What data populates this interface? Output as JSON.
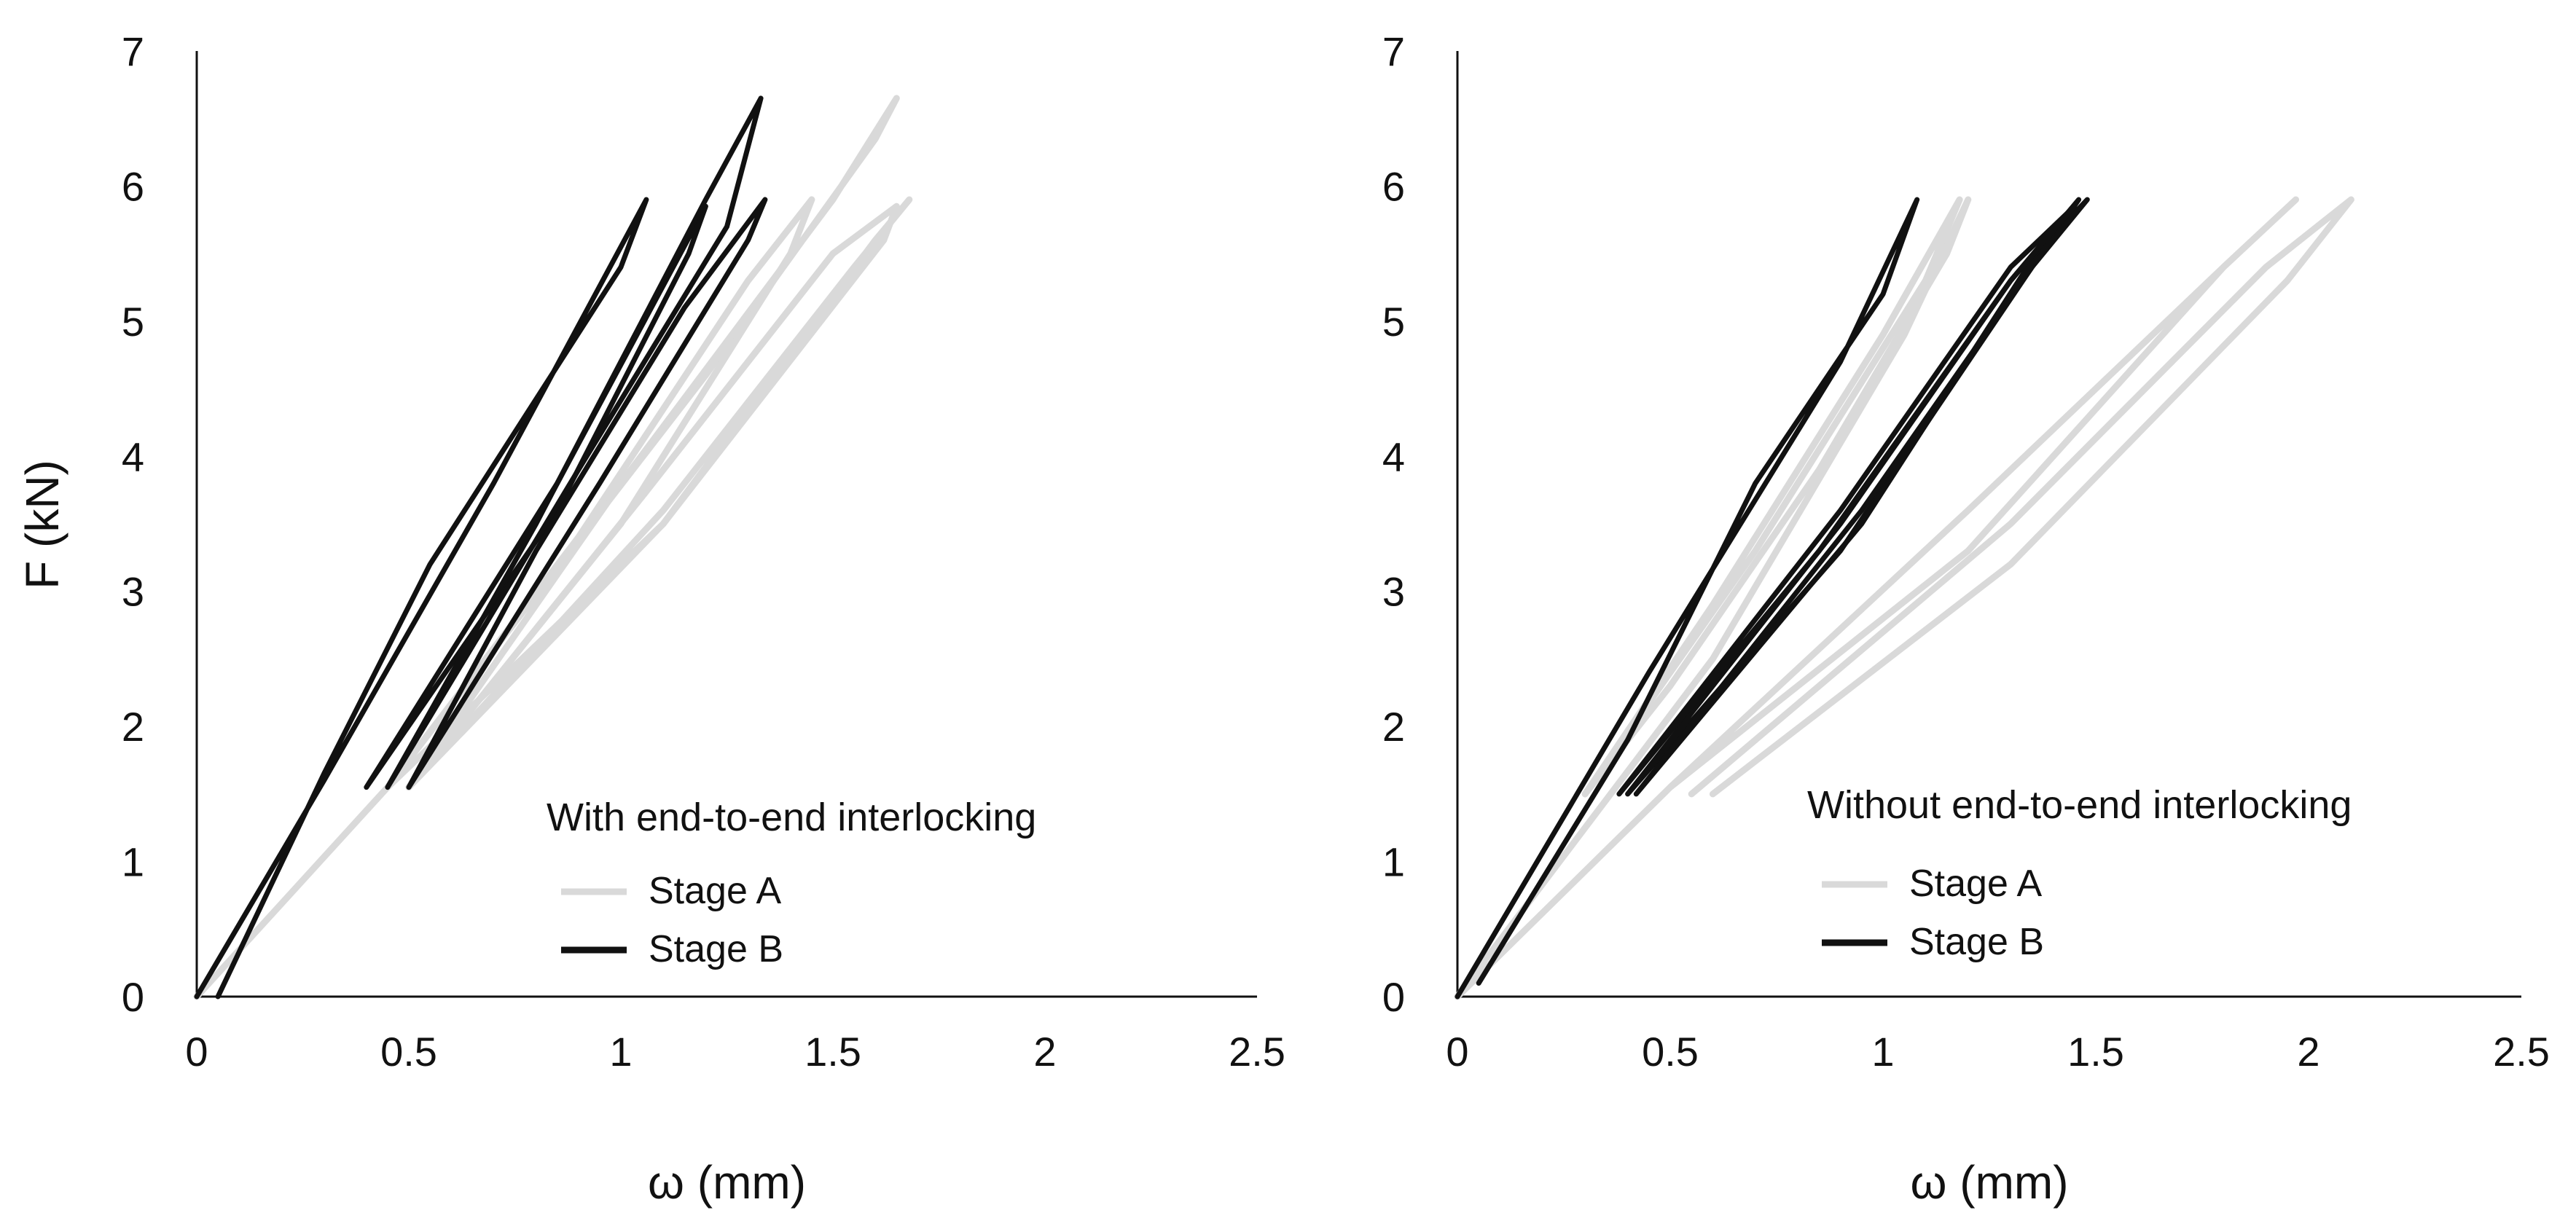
{
  "chart_data": [
    {
      "type": "line",
      "title": "",
      "xlabel": "ω (mm)",
      "ylabel": "F (kN)",
      "xlim": [
        0,
        2.5
      ],
      "ylim": [
        0,
        7
      ],
      "x_ticks": [
        "0",
        "0.5",
        "1",
        "1.5",
        "2",
        "2.5"
      ],
      "y_ticks": [
        "0",
        "1",
        "2",
        "3",
        "4",
        "5",
        "6",
        "7"
      ],
      "grid": false,
      "legend_title": "With end-to-end interlocking",
      "legend_position": "bottom-right",
      "series": [
        {
          "name": "Stage A",
          "color": "#d9d9d9",
          "cycles": [
            {
              "x": [
                0,
                0.45,
                1.2,
                1.6,
                1.65,
                1.5,
                1.0,
                0.5
              ],
              "y": [
                0,
                1.55,
                4.6,
                6.35,
                6.65,
                5.9,
                3.8,
                1.55
              ]
            },
            {
              "x": [
                0.5,
                1.0,
                1.4,
                1.45,
                1.3,
                0.9,
                0.45
              ],
              "y": [
                1.55,
                3.5,
                5.5,
                5.9,
                5.3,
                3.4,
                1.55
              ]
            },
            {
              "x": [
                0.45,
                1.1,
                1.6,
                1.68,
                1.55,
                1.1,
                0.5
              ],
              "y": [
                1.55,
                3.5,
                5.6,
                5.9,
                5.4,
                3.6,
                1.55
              ]
            },
            {
              "x": [
                0.5,
                1.1,
                1.62,
                1.65,
                1.5,
                1.05,
                0.5
              ],
              "y": [
                1.55,
                3.5,
                5.6,
                5.85,
                5.5,
                3.7,
                1.55
              ]
            }
          ]
        },
        {
          "name": "Stage B",
          "color": "#111111",
          "cycles": [
            {
              "x": [
                0,
                0.3,
                0.7,
                1.06,
                1.0,
                0.55,
                0.3,
                0.05
              ],
              "y": [
                0,
                1.6,
                3.8,
                5.9,
                5.4,
                3.2,
                1.65,
                0
              ]
            },
            {
              "x": [
                0.4,
                0.85,
                1.2,
                1.16,
                0.85,
                0.4
              ],
              "y": [
                1.55,
                3.8,
                5.85,
                5.5,
                3.6,
                1.55
              ]
            },
            {
              "x": [
                0.45,
                0.9,
                1.25,
                1.33,
                1.2,
                0.8,
                0.45
              ],
              "y": [
                1.55,
                3.9,
                5.7,
                6.65,
                5.9,
                3.5,
                1.55
              ]
            },
            {
              "x": [
                0.5,
                0.95,
                1.3,
                1.34,
                1.15,
                0.8,
                0.5
              ],
              "y": [
                1.55,
                3.8,
                5.6,
                5.9,
                5.1,
                3.3,
                1.55
              ]
            }
          ]
        }
      ]
    },
    {
      "type": "line",
      "title": "",
      "xlabel": "ω (mm)",
      "ylabel": "",
      "xlim": [
        0,
        2.5
      ],
      "ylim": [
        0,
        7
      ],
      "x_ticks": [
        "0",
        "0.5",
        "1",
        "1.5",
        "2",
        "2.5"
      ],
      "y_ticks": [
        "0",
        "1",
        "2",
        "3",
        "4",
        "5",
        "6",
        "7"
      ],
      "grid": false,
      "legend_title": "Without end-to-end interlocking",
      "legend_position": "bottom-right",
      "series": [
        {
          "name": "Stage A",
          "color": "#d9d9d9",
          "cycles": [
            {
              "x": [
                0,
                0.6,
                1.05,
                1.2,
                1.15,
                0.85,
                0.5,
                0.3
              ],
              "y": [
                0,
                2.5,
                4.9,
                5.9,
                5.5,
                3.9,
                2.3,
                1.5
              ]
            },
            {
              "x": [
                0.3,
                0.7,
                1.1,
                1.18,
                1.0,
                0.6,
                0.3
              ],
              "y": [
                1.5,
                3.3,
                5.3,
                5.9,
                4.9,
                2.9,
                1.5
              ]
            },
            {
              "x": [
                0,
                0.5,
                1.2,
                1.8,
                1.97,
                1.8,
                1.2,
                0.5
              ],
              "y": [
                0,
                1.55,
                3.6,
                5.4,
                5.9,
                5.4,
                3.3,
                1.55
              ]
            },
            {
              "x": [
                0.55,
                1.3,
                1.9,
                2.1,
                1.95,
                1.3,
                0.6
              ],
              "y": [
                1.5,
                3.5,
                5.4,
                5.9,
                5.3,
                3.2,
                1.5
              ]
            }
          ]
        },
        {
          "name": "Stage B",
          "color": "#111111",
          "cycles": [
            {
              "x": [
                0,
                0.45,
                0.9,
                1.08,
                1.0,
                0.7,
                0.4,
                0.05
              ],
              "y": [
                0,
                2.4,
                4.7,
                5.9,
                5.2,
                3.8,
                1.9,
                0.1
              ]
            },
            {
              "x": [
                0.4,
                0.9,
                1.3,
                1.46,
                1.35,
                0.9,
                0.4
              ],
              "y": [
                1.5,
                3.5,
                5.3,
                5.9,
                5.4,
                3.3,
                1.5
              ]
            },
            {
              "x": [
                0.42,
                0.95,
                1.35,
                1.48,
                1.36,
                0.95,
                0.42
              ],
              "y": [
                1.5,
                3.6,
                5.4,
                5.9,
                5.5,
                3.5,
                1.5
              ]
            },
            {
              "x": [
                0.38,
                0.9,
                1.3,
                1.45,
                1.3,
                0.85,
                0.38
              ],
              "y": [
                1.5,
                3.6,
                5.4,
                5.85,
                5.3,
                3.3,
                1.5
              ]
            }
          ]
        }
      ]
    }
  ]
}
